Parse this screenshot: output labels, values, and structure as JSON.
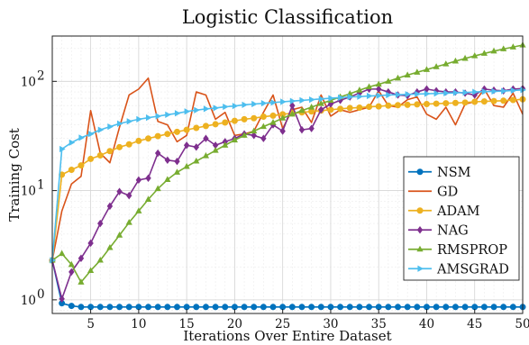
{
  "chart_data": {
    "type": "line",
    "title": "Logistic Classification",
    "xlabel": "Iterations Over Entire Dataset",
    "ylabel": "Training Cost",
    "y_scale": "log",
    "xlim": [
      1,
      50
    ],
    "ylim": [
      0.75,
      260
    ],
    "x_ticks": [
      5,
      10,
      15,
      20,
      25,
      30,
      35,
      40,
      45,
      50
    ],
    "y_ticks": [
      {
        "value": 1,
        "label": "10",
        "sup": "0"
      },
      {
        "value": 10,
        "label": "10",
        "sup": "1"
      },
      {
        "value": 100,
        "label": "10",
        "sup": "2"
      }
    ],
    "grid": true,
    "legend_position": "center-right",
    "x": [
      1,
      2,
      3,
      4,
      5,
      6,
      7,
      8,
      9,
      10,
      11,
      12,
      13,
      14,
      15,
      16,
      17,
      18,
      19,
      20,
      21,
      22,
      23,
      24,
      25,
      26,
      27,
      28,
      29,
      30,
      31,
      32,
      33,
      34,
      35,
      36,
      37,
      38,
      39,
      40,
      41,
      42,
      43,
      44,
      45,
      46,
      47,
      48,
      49,
      50
    ],
    "series": [
      {
        "name": "NSM",
        "color": "#0072BD",
        "marker": "circle",
        "values": [
          2.3,
          0.93,
          0.88,
          0.86,
          0.86,
          0.86,
          0.86,
          0.86,
          0.86,
          0.86,
          0.86,
          0.86,
          0.86,
          0.86,
          0.86,
          0.86,
          0.86,
          0.86,
          0.86,
          0.86,
          0.86,
          0.86,
          0.86,
          0.86,
          0.86,
          0.86,
          0.86,
          0.86,
          0.86,
          0.86,
          0.86,
          0.86,
          0.86,
          0.86,
          0.86,
          0.86,
          0.86,
          0.86,
          0.86,
          0.86,
          0.86,
          0.86,
          0.86,
          0.86,
          0.86,
          0.86,
          0.86,
          0.86,
          0.86,
          0.86
        ]
      },
      {
        "name": "GD",
        "color": "#D95319",
        "marker": "none",
        "values": [
          2.3,
          6.5,
          11.5,
          13.5,
          54,
          22,
          18,
          38,
          75,
          85,
          107,
          43,
          40,
          28,
          32,
          80,
          75,
          45,
          52,
          32,
          33,
          35,
          52,
          75,
          37,
          55,
          58,
          42,
          75,
          48,
          55,
          52,
          55,
          58,
          82,
          60,
          58,
          68,
          72,
          50,
          45,
          58,
          40,
          62,
          65,
          85,
          60,
          58,
          78,
          50
        ]
      },
      {
        "name": "ADAM",
        "color": "#EDB120",
        "marker": "circle",
        "values": [
          2.3,
          14,
          15.5,
          17,
          19.5,
          21,
          23,
          25,
          26.5,
          28.5,
          30,
          31.5,
          33,
          34.5,
          36,
          37.5,
          39,
          40.5,
          42,
          43.5,
          45,
          46,
          47.5,
          48.5,
          50,
          51,
          52,
          53,
          54,
          55,
          56,
          57,
          57.5,
          58.5,
          59,
          60,
          60.5,
          61,
          61.5,
          62,
          62.5,
          63,
          63.5,
          64,
          65,
          65.5,
          66,
          66.5,
          67.5,
          68.5
        ]
      },
      {
        "name": "NAG",
        "color": "#7E2F8E",
        "marker": "diamond",
        "values": [
          2.3,
          1.02,
          1.8,
          2.4,
          3.3,
          5,
          7.2,
          9.8,
          9,
          12.5,
          13,
          22,
          19,
          18.5,
          26,
          25,
          30,
          26,
          28,
          30,
          33,
          32,
          30,
          40,
          35,
          60,
          36,
          37,
          55,
          62,
          67,
          72,
          78,
          85,
          85,
          80,
          75,
          74,
          80,
          85,
          82,
          80,
          80,
          78,
          75,
          85,
          83,
          82,
          85,
          86
        ]
      },
      {
        "name": "RMSPROP",
        "color": "#77AC30",
        "marker": "triangle-up",
        "values": [
          2.3,
          2.65,
          2.1,
          1.45,
          1.85,
          2.3,
          3,
          3.9,
          5.1,
          6.5,
          8.3,
          10.4,
          12.6,
          14.7,
          16.6,
          18.6,
          20.8,
          23.3,
          26,
          29,
          32,
          35,
          38.5,
          42,
          46,
          50,
          54,
          58,
          62.5,
          67,
          72,
          77,
          83,
          89,
          94,
          100,
          107,
          114,
          121,
          128,
          136,
          144,
          153,
          162,
          171,
          180,
          189,
          198,
          206,
          215
        ]
      },
      {
        "name": "AMSGRAD",
        "color": "#4DBEEE",
        "marker": "triangle-right",
        "values": [
          2.3,
          24,
          27.5,
          30.5,
          33,
          36,
          38.5,
          41,
          43,
          45,
          46.5,
          48,
          49.5,
          51,
          53,
          54.5,
          56,
          57,
          58.5,
          59.5,
          61,
          62,
          63,
          64,
          65,
          66,
          67,
          68,
          69,
          70,
          71,
          72,
          72.5,
          73.5,
          74,
          75,
          75.5,
          76,
          76.5,
          77,
          77.5,
          78,
          78.5,
          79,
          80,
          80.5,
          81,
          81.5,
          82.5,
          83.5
        ]
      }
    ]
  }
}
